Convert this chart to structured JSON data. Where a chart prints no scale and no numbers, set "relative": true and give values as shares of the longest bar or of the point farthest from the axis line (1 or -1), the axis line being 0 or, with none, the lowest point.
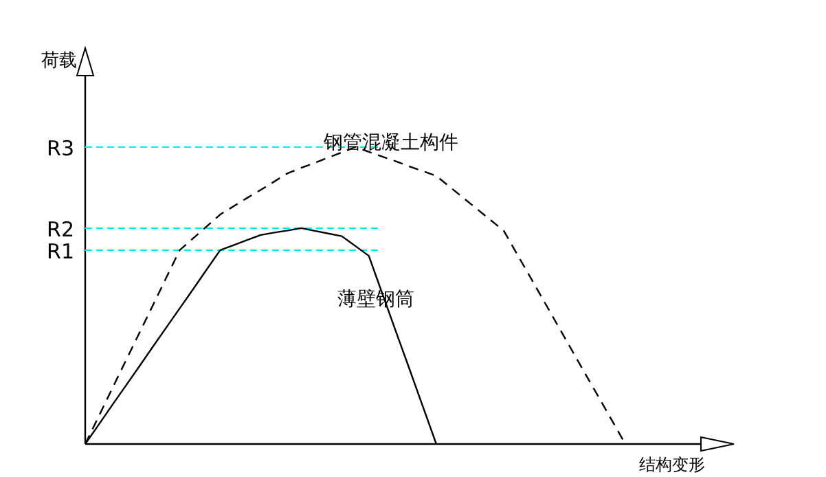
{
  "chart_data": {
    "type": "line",
    "relative": true,
    "xlabel": "结构变形",
    "ylabel": "荷载",
    "categories": [
      null,
      null,
      null,
      null,
      null,
      null,
      null,
      null,
      null,
      null,
      null,
      null,
      null,
      null,
      null,
      null,
      null,
      null,
      null,
      null,
      null,
      null,
      null,
      null,
      null,
      null,
      null,
      null,
      null,
      null,
      null,
      null,
      null,
      null,
      null,
      null,
      null,
      null,
      null,
      null,
      null
    ],
    "series": [
      {
        "name": "钢管混凝土构件",
        "color": "#000000",
        "line_style": "dashed",
        "values": [
          0,
          0.093,
          0.187,
          0.28,
          0.373,
          0.466,
          0.56,
          0.653,
          0.693,
          0.733,
          0.773,
          0.801,
          0.829,
          0.856,
          0.884,
          0.912,
          0.93,
          0.947,
          0.965,
          0.982,
          1,
          0.984,
          0.968,
          0.952,
          0.935,
          0.919,
          0.903,
          0.866,
          0.829,
          0.792,
          0.755,
          0.718,
          0.638,
          0.559,
          0.479,
          0.399,
          0.319,
          0.239,
          0.16,
          0.08,
          0
        ]
      },
      {
        "name": "薄壁钢筒",
        "color": "#000000",
        "line_style": "solid",
        "values": [
          0,
          0.065,
          0.131,
          0.196,
          0.261,
          0.327,
          0.392,
          0.457,
          0.522,
          0.588,
          0.653,
          0.67,
          0.687,
          0.704,
          0.712,
          0.719,
          0.727,
          0.718,
          0.709,
          0.7,
          0.667,
          0.634,
          0.507,
          0.38,
          0.254,
          0.127,
          0,
          null,
          null,
          null,
          null,
          null,
          null,
          null,
          null,
          null,
          null,
          null,
          null,
          null,
          null
        ]
      }
    ],
    "ref_lines": [
      {
        "axis": "y",
        "value": 0.653,
        "label": "R1",
        "color": "#00e5ee",
        "line_style": "dashed"
      },
      {
        "axis": "y",
        "value": 0.727,
        "label": "R2",
        "color": "#00e5ee",
        "line_style": "dashed"
      },
      {
        "axis": "y",
        "value": 1,
        "label": "R3",
        "color": "#00e5ee",
        "line_style": "dashed"
      }
    ]
  }
}
